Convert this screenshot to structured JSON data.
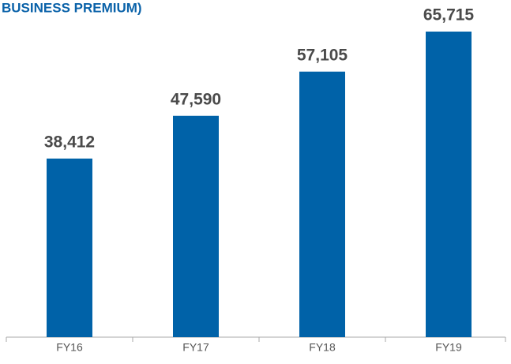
{
  "chart_data": {
    "type": "bar",
    "title": "BUSINESS PREMIUM)",
    "categories": [
      "FY16",
      "FY17",
      "FY18",
      "FY19"
    ],
    "values": [
      38412,
      47590,
      57105,
      65715
    ],
    "value_labels": [
      "38,412",
      "47,590",
      "57,105",
      "65,715"
    ],
    "color": "#0062a8"
  }
}
